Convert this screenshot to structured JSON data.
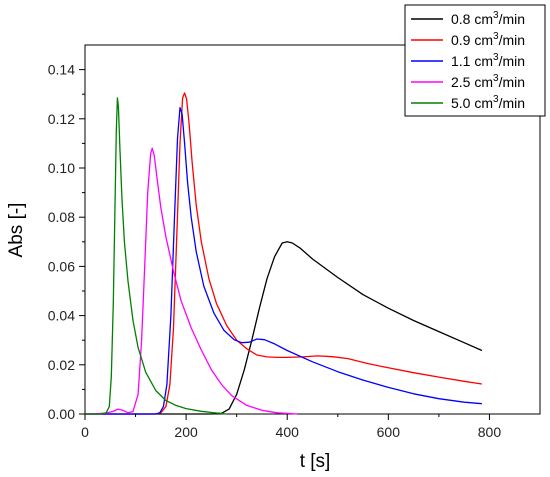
{
  "chart_data": {
    "type": "line",
    "title": "",
    "xlabel": "t [s]",
    "ylabel": "Abs [-]",
    "xlim": [
      0,
      900
    ],
    "ylim": [
      0,
      0.15
    ],
    "x_ticks": [
      0,
      200,
      400,
      600,
      800
    ],
    "x_tick_labels": [
      "0",
      "200",
      "400",
      "600",
      "800"
    ],
    "y_ticks": [
      0.0,
      0.02,
      0.04,
      0.06,
      0.08,
      0.1,
      0.12,
      0.14
    ],
    "y_tick_labels": [
      "0.00",
      "0.02",
      "0.04",
      "0.06",
      "0.08",
      "0.10",
      "0.12",
      "0.14"
    ],
    "grid": false,
    "legend_position": "top-right",
    "series": [
      {
        "name": "0.8 cm3/min",
        "legend": {
          "pre": "0.8 cm",
          "sup": "3",
          "post": "/min"
        },
        "color": "#000000",
        "points": [
          [
            0,
            0
          ],
          [
            200,
            0
          ],
          [
            250,
            0
          ],
          [
            270,
            0.0003
          ],
          [
            285,
            0.002
          ],
          [
            300,
            0.008
          ],
          [
            315,
            0.018
          ],
          [
            330,
            0.03
          ],
          [
            345,
            0.043
          ],
          [
            360,
            0.055
          ],
          [
            375,
            0.064
          ],
          [
            390,
            0.0695
          ],
          [
            400,
            0.07
          ],
          [
            410,
            0.0695
          ],
          [
            425,
            0.0675
          ],
          [
            450,
            0.063
          ],
          [
            500,
            0.0555
          ],
          [
            550,
            0.0485
          ],
          [
            600,
            0.043
          ],
          [
            650,
            0.038
          ],
          [
            700,
            0.0335
          ],
          [
            750,
            0.029
          ],
          [
            785,
            0.0258
          ]
        ]
      },
      {
        "name": "0.9 cm3/min",
        "legend": {
          "pre": "0.9 cm",
          "sup": "3",
          "post": "/min"
        },
        "color": "#ff0000",
        "points": [
          [
            0,
            0
          ],
          [
            140,
            0
          ],
          [
            150,
            0.0005
          ],
          [
            160,
            0.003
          ],
          [
            168,
            0.012
          ],
          [
            175,
            0.035
          ],
          [
            182,
            0.075
          ],
          [
            188,
            0.11
          ],
          [
            193,
            0.1285
          ],
          [
            197,
            0.1305
          ],
          [
            201,
            0.128
          ],
          [
            206,
            0.118
          ],
          [
            212,
            0.102
          ],
          [
            220,
            0.085
          ],
          [
            230,
            0.07
          ],
          [
            245,
            0.055
          ],
          [
            260,
            0.045
          ],
          [
            280,
            0.036
          ],
          [
            300,
            0.03
          ],
          [
            320,
            0.0265
          ],
          [
            340,
            0.024
          ],
          [
            360,
            0.0232
          ],
          [
            380,
            0.023
          ],
          [
            400,
            0.023
          ],
          [
            430,
            0.0232
          ],
          [
            460,
            0.0236
          ],
          [
            490,
            0.0233
          ],
          [
            520,
            0.0225
          ],
          [
            560,
            0.0205
          ],
          [
            600,
            0.0188
          ],
          [
            650,
            0.0168
          ],
          [
            700,
            0.015
          ],
          [
            750,
            0.0133
          ],
          [
            785,
            0.0122
          ]
        ]
      },
      {
        "name": "1.1 cm3/min",
        "legend": {
          "pre": "1.1 cm",
          "sup": "3",
          "post": "/min"
        },
        "color": "#0000ff",
        "points": [
          [
            0,
            0
          ],
          [
            140,
            0
          ],
          [
            148,
            0.0005
          ],
          [
            155,
            0.003
          ],
          [
            162,
            0.012
          ],
          [
            170,
            0.04
          ],
          [
            177,
            0.08
          ],
          [
            183,
            0.112
          ],
          [
            188,
            0.1245
          ],
          [
            192,
            0.122
          ],
          [
            197,
            0.11
          ],
          [
            203,
            0.094
          ],
          [
            210,
            0.08
          ],
          [
            220,
            0.066
          ],
          [
            235,
            0.052
          ],
          [
            255,
            0.041
          ],
          [
            275,
            0.034
          ],
          [
            295,
            0.0302
          ],
          [
            310,
            0.029
          ],
          [
            325,
            0.0292
          ],
          [
            340,
            0.0305
          ],
          [
            355,
            0.0302
          ],
          [
            375,
            0.0285
          ],
          [
            400,
            0.0258
          ],
          [
            450,
            0.0212
          ],
          [
            500,
            0.0172
          ],
          [
            550,
            0.0138
          ],
          [
            600,
            0.0108
          ],
          [
            650,
            0.0082
          ],
          [
            700,
            0.0062
          ],
          [
            750,
            0.0048
          ],
          [
            785,
            0.0042
          ]
        ]
      },
      {
        "name": "2.5 cm3/min",
        "legend": {
          "pre": "2.5 cm",
          "sup": "3",
          "post": "/min"
        },
        "color": "#ff00ff",
        "points": [
          [
            0,
            0
          ],
          [
            40,
            0.0003
          ],
          [
            55,
            0.001
          ],
          [
            65,
            0.002
          ],
          [
            75,
            0.0015
          ],
          [
            85,
            0.0005
          ],
          [
            95,
            0.001
          ],
          [
            105,
            0.008
          ],
          [
            112,
            0.03
          ],
          [
            118,
            0.06
          ],
          [
            124,
            0.09
          ],
          [
            130,
            0.106
          ],
          [
            133,
            0.108
          ],
          [
            137,
            0.105
          ],
          [
            143,
            0.095
          ],
          [
            150,
            0.084
          ],
          [
            160,
            0.072
          ],
          [
            175,
            0.058
          ],
          [
            190,
            0.046
          ],
          [
            210,
            0.035
          ],
          [
            230,
            0.026
          ],
          [
            250,
            0.018
          ],
          [
            270,
            0.012
          ],
          [
            290,
            0.0075
          ],
          [
            320,
            0.0035
          ],
          [
            350,
            0.0015
          ],
          [
            380,
            0.0005
          ],
          [
            420,
            0
          ]
        ]
      },
      {
        "name": "5.0 cm3/min",
        "legend": {
          "pre": "5.0 cm",
          "sup": "3",
          "post": "/min"
        },
        "color": "#008000",
        "points": [
          [
            0,
            0
          ],
          [
            30,
            0
          ],
          [
            42,
            0.0005
          ],
          [
            48,
            0.003
          ],
          [
            52,
            0.015
          ],
          [
            56,
            0.045
          ],
          [
            59,
            0.08
          ],
          [
            62,
            0.115
          ],
          [
            64,
            0.1285
          ],
          [
            66,
            0.125
          ],
          [
            69,
            0.108
          ],
          [
            73,
            0.088
          ],
          [
            78,
            0.07
          ],
          [
            85,
            0.054
          ],
          [
            95,
            0.038
          ],
          [
            105,
            0.027
          ],
          [
            120,
            0.017
          ],
          [
            140,
            0.0095
          ],
          [
            160,
            0.0055
          ],
          [
            180,
            0.0035
          ],
          [
            200,
            0.0022
          ],
          [
            230,
            0.0011
          ],
          [
            260,
            0.0004
          ],
          [
            280,
            0
          ]
        ]
      }
    ]
  }
}
